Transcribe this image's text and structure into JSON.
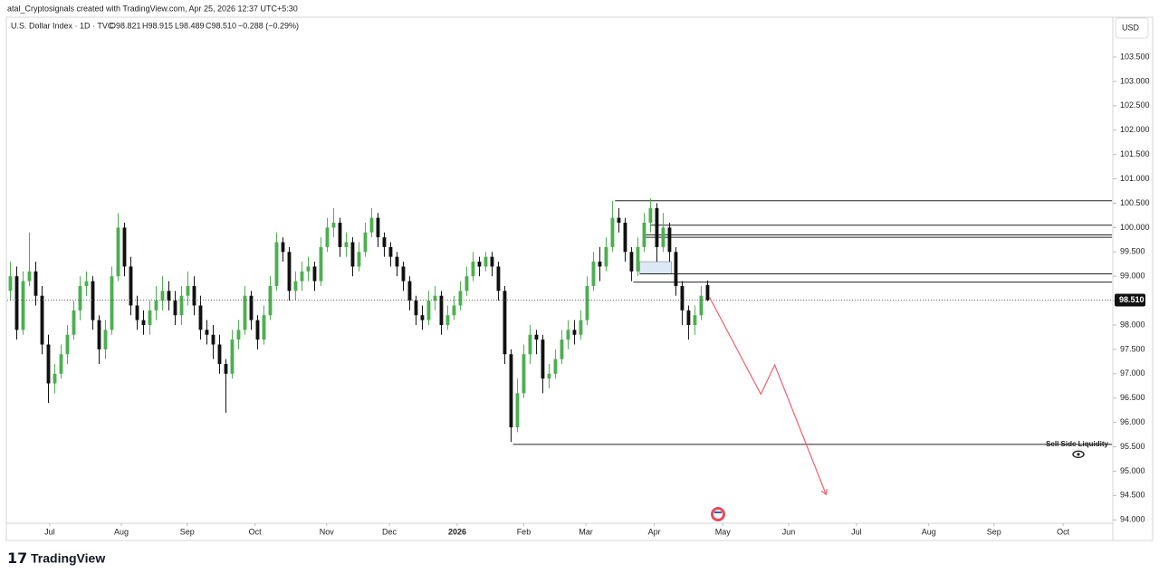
{
  "header": {
    "caption": "atal_Cryptosignals created with TradingView.com, Apr 25, 2026 12:37 UTC+5:30"
  },
  "chart_data": {
    "type": "candlestick",
    "legend": {
      "symbol": "U.S. Dollar Index · 1D · TVC",
      "open": "O98.821",
      "high": "H98.915",
      "low": "L98.489",
      "close": "C98.510",
      "change": "−0.288 (−0.29%)"
    },
    "currency": "USD",
    "up_color": "#4caf50",
    "down_color": "#111111",
    "open": [
      98.7,
      99.0,
      97.9,
      98.9,
      99.1,
      98.6,
      97.6,
      96.8,
      97.0,
      97.4,
      97.8,
      98.3,
      98.8,
      98.9,
      98.1,
      97.5,
      97.9,
      99.0,
      100.0,
      99.2,
      98.4,
      98.1,
      98.0,
      98.3,
      98.5,
      98.7,
      98.5,
      98.2,
      98.6,
      98.8,
      98.4,
      97.9,
      97.8,
      97.6,
      97.2,
      97.0,
      97.7,
      97.9,
      98.6,
      98.1,
      97.7,
      98.2,
      98.8,
      99.7,
      99.5,
      98.7,
      98.9,
      99.1,
      99.2,
      98.9,
      99.6,
      100.0,
      100.1,
      99.6,
      99.7,
      99.2,
      99.5,
      99.9,
      100.2,
      99.8,
      99.6,
      99.4,
      99.2,
      98.9,
      98.5,
      98.2,
      98.1,
      98.5,
      98.6,
      98.0,
      98.2,
      98.4,
      98.7,
      99.0,
      99.3,
      99.2,
      99.4,
      99.2,
      98.7,
      97.4,
      95.9,
      96.6,
      97.4,
      97.8,
      97.7,
      96.9,
      97.0,
      97.3,
      97.7,
      97.9,
      97.8,
      98.1,
      98.8,
      99.3,
      99.2,
      99.6,
      100.2,
      100.1,
      99.5,
      99.1,
      99.6,
      100.1,
      100.4,
      99.6,
      100.0,
      99.5,
      98.8,
      98.3,
      98.0,
      98.2,
      98.821
    ],
    "high": [
      99.3,
      99.2,
      99.1,
      99.9,
      99.3,
      98.8,
      97.8,
      97.2,
      97.6,
      98.0,
      98.5,
      99.0,
      99.1,
      99.0,
      98.2,
      98.1,
      99.2,
      100.3,
      100.1,
      99.4,
      98.6,
      98.3,
      98.5,
      98.8,
      99.0,
      98.9,
      98.7,
      98.8,
      99.1,
      99.0,
      98.6,
      98.1,
      98.0,
      97.8,
      97.3,
      97.9,
      98.1,
      98.8,
      98.7,
      98.2,
      98.4,
      99.0,
      99.9,
      99.8,
      99.6,
      99.1,
      99.3,
      99.4,
      99.3,
      99.8,
      100.2,
      100.4,
      100.2,
      99.9,
      99.8,
      99.7,
      100.1,
      100.4,
      100.3,
      99.9,
      99.7,
      99.5,
      99.3,
      99.0,
      98.6,
      98.4,
      98.7,
      98.8,
      98.7,
      98.4,
      98.6,
      98.9,
      99.2,
      99.5,
      99.4,
      99.5,
      99.5,
      99.3,
      98.8,
      97.5,
      96.9,
      97.6,
      98.0,
      97.9,
      97.8,
      97.2,
      97.5,
      97.9,
      98.1,
      98.1,
      98.3,
      99.0,
      99.5,
      99.6,
      99.8,
      100.55,
      100.4,
      100.2,
      99.6,
      99.8,
      100.3,
      100.6,
      100.5,
      100.3,
      100.1,
      99.6,
      98.9,
      98.4,
      98.4,
      98.8,
      98.915
    ],
    "low": [
      98.5,
      97.7,
      97.8,
      98.8,
      98.4,
      97.4,
      96.4,
      96.6,
      96.9,
      97.2,
      97.7,
      98.1,
      98.6,
      97.9,
      97.2,
      97.3,
      97.8,
      98.9,
      99.0,
      98.2,
      97.9,
      97.8,
      97.8,
      98.1,
      98.3,
      98.3,
      98.0,
      98.0,
      98.4,
      98.2,
      97.7,
      97.6,
      97.3,
      97.0,
      96.2,
      96.9,
      97.5,
      97.8,
      97.9,
      97.5,
      97.6,
      98.1,
      98.7,
      99.3,
      98.5,
      98.5,
      98.7,
      98.9,
      98.7,
      98.8,
      99.5,
      99.8,
      99.4,
      99.4,
      99.0,
      99.1,
      99.4,
      99.8,
      99.6,
      99.4,
      99.2,
      99.0,
      98.7,
      98.3,
      98.0,
      97.9,
      98.0,
      98.3,
      97.8,
      97.9,
      98.1,
      98.3,
      98.6,
      98.9,
      99.0,
      99.1,
      99.0,
      98.5,
      97.2,
      95.6,
      95.8,
      96.5,
      97.2,
      97.4,
      96.6,
      96.7,
      96.9,
      97.2,
      97.5,
      97.6,
      97.7,
      98.0,
      98.7,
      98.9,
      99.1,
      99.5,
      99.9,
      99.3,
      98.9,
      99.0,
      99.5,
      99.9,
      99.3,
      99.5,
      99.3,
      98.6,
      98.0,
      97.7,
      97.8,
      98.1,
      98.489
    ],
    "close": [
      99.0,
      97.9,
      98.9,
      99.1,
      98.6,
      97.6,
      96.8,
      97.0,
      97.4,
      97.8,
      98.3,
      98.8,
      98.9,
      98.1,
      97.5,
      97.9,
      99.0,
      100.0,
      99.2,
      98.4,
      98.1,
      98.0,
      98.3,
      98.5,
      98.7,
      98.5,
      98.2,
      98.6,
      98.8,
      98.4,
      97.9,
      97.8,
      97.6,
      97.2,
      97.0,
      97.7,
      97.9,
      98.6,
      98.1,
      97.7,
      98.2,
      98.8,
      99.7,
      99.5,
      98.7,
      98.9,
      99.1,
      99.2,
      98.9,
      99.6,
      100.0,
      100.1,
      99.6,
      99.7,
      99.2,
      99.5,
      99.9,
      100.2,
      99.8,
      99.6,
      99.4,
      99.2,
      98.9,
      98.5,
      98.2,
      98.1,
      98.5,
      98.6,
      98.0,
      98.2,
      98.4,
      98.7,
      99.0,
      99.3,
      99.2,
      99.4,
      99.2,
      98.7,
      97.4,
      95.9,
      96.6,
      97.4,
      97.8,
      97.7,
      96.9,
      97.0,
      97.3,
      97.7,
      97.9,
      97.8,
      98.1,
      98.8,
      99.3,
      99.2,
      99.6,
      100.2,
      100.1,
      99.5,
      99.1,
      99.6,
      100.1,
      100.4,
      99.6,
      100.0,
      99.5,
      98.8,
      98.3,
      98.0,
      98.2,
      98.6,
      98.51
    ],
    "last_price": {
      "value": 98.51,
      "label": "98.510"
    },
    "xlim": [
      -0.5,
      173.8
    ],
    "xticks": [
      {
        "value": 6.2,
        "label": "Jul"
      },
      {
        "value": 17.5,
        "label": "Aug"
      },
      {
        "value": 27.9,
        "label": "Sep"
      },
      {
        "value": 38.6,
        "label": "Oct"
      },
      {
        "value": 49.9,
        "label": "Nov"
      },
      {
        "value": 59.8,
        "label": "Dec"
      },
      {
        "value": 70.5,
        "label": "2026"
      },
      {
        "value": 81,
        "label": "Feb"
      },
      {
        "value": 90.8,
        "label": "Mar"
      },
      {
        "value": 101.6,
        "label": "Apr"
      },
      {
        "value": 112.4,
        "label": "May"
      },
      {
        "value": 122.8,
        "label": "Jun"
      },
      {
        "value": 133.5,
        "label": "Jul"
      },
      {
        "value": 144.9,
        "label": "Aug"
      },
      {
        "value": 155.2,
        "label": "Sep"
      },
      {
        "value": 166.1,
        "label": "Oct"
      }
    ],
    "ylim": [
      93.93,
      104.3
    ],
    "yticks": [
      {
        "value": 94,
        "label": "94.000"
      },
      {
        "value": 94.5,
        "label": "94.500"
      },
      {
        "value": 95,
        "label": "95.000"
      },
      {
        "value": 95.5,
        "label": "95.500"
      },
      {
        "value": 96,
        "label": "96.000"
      },
      {
        "value": 96.5,
        "label": "96.500"
      },
      {
        "value": 97,
        "label": "97.000"
      },
      {
        "value": 97.5,
        "label": "97.500"
      },
      {
        "value": 98,
        "label": "98.000"
      },
      {
        "value": 98.5,
        "label": "98.500"
      },
      {
        "value": 99,
        "label": "99.000"
      },
      {
        "value": 99.5,
        "label": "99.500"
      },
      {
        "value": 100,
        "label": "100.000"
      },
      {
        "value": 100.5,
        "label": "100.500"
      },
      {
        "value": 101,
        "label": "101.000"
      },
      {
        "value": 101.5,
        "label": "101.500"
      },
      {
        "value": 102,
        "label": "102.000"
      },
      {
        "value": 102.5,
        "label": "102.500"
      },
      {
        "value": 103,
        "label": "103.000"
      },
      {
        "value": 103.5,
        "label": "103.500"
      }
    ],
    "levels": [
      {
        "value": 100.55,
        "from": 95.4
      },
      {
        "value": 100.05,
        "from": 101
      },
      {
        "value": 99.85,
        "from": 100.1
      },
      {
        "value": 99.8,
        "from": 100.1
      },
      {
        "value": 99.05,
        "from": 99.3
      },
      {
        "value": 98.88,
        "from": 98.3
      },
      {
        "value": 95.55,
        "from": 79.3,
        "label": "Sell Side Liquidity"
      }
    ],
    "zone": {
      "top": 99.3,
      "bottom": 99.05,
      "from": 99.3,
      "to": 104.3
    },
    "projection": {
      "color": "#f06070",
      "x": [
        110.3,
        118.4,
        120.6,
        128.7
      ],
      "y": [
        98.57,
        96.58,
        97.18,
        94.52
      ]
    }
  },
  "footer": {
    "brand": "TradingView"
  }
}
